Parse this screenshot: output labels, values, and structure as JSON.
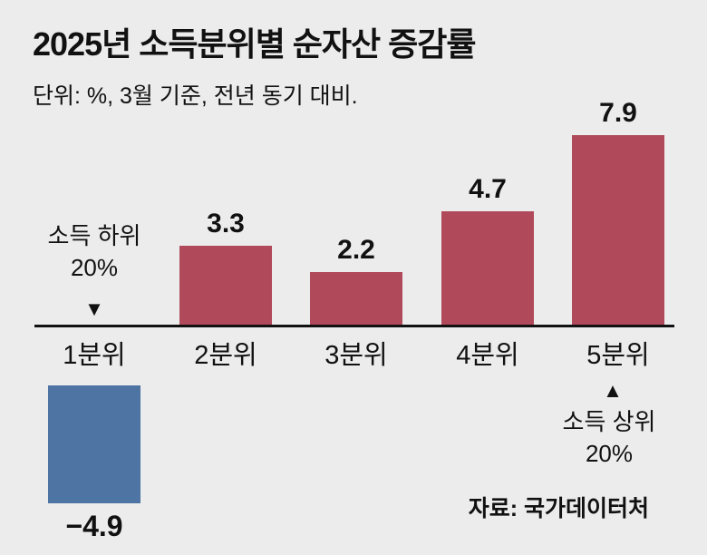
{
  "chart_data": {
    "type": "bar",
    "title": "2025년 소득분위별 순자산 증감률",
    "subtitle": "단위: %, 3월 기준, 전년 동기 대비.",
    "categories": [
      "1분위",
      "2분위",
      "3분위",
      "4분위",
      "5분위"
    ],
    "values": [
      -4.9,
      3.3,
      2.2,
      4.7,
      7.9
    ],
    "value_labels": [
      "−4.9",
      "3.3",
      "2.2",
      "4.7",
      "7.9"
    ],
    "xlabel": "",
    "ylabel": "",
    "ylim": [
      -6,
      9
    ],
    "grid": false,
    "legend": "none",
    "positive_color": "#b04a5a",
    "negative_color": "#4d74a3",
    "background_color": "#ececec",
    "axis_color": "#111111",
    "annotations": {
      "low": {
        "line1": "소득 하위",
        "line2": "20%",
        "marker": "▼",
        "target": "1분위"
      },
      "high": {
        "line1": "소득 상위",
        "line2": "20%",
        "marker": "▲",
        "target": "5분위"
      }
    },
    "source": "자료: 국가데이터처"
  }
}
